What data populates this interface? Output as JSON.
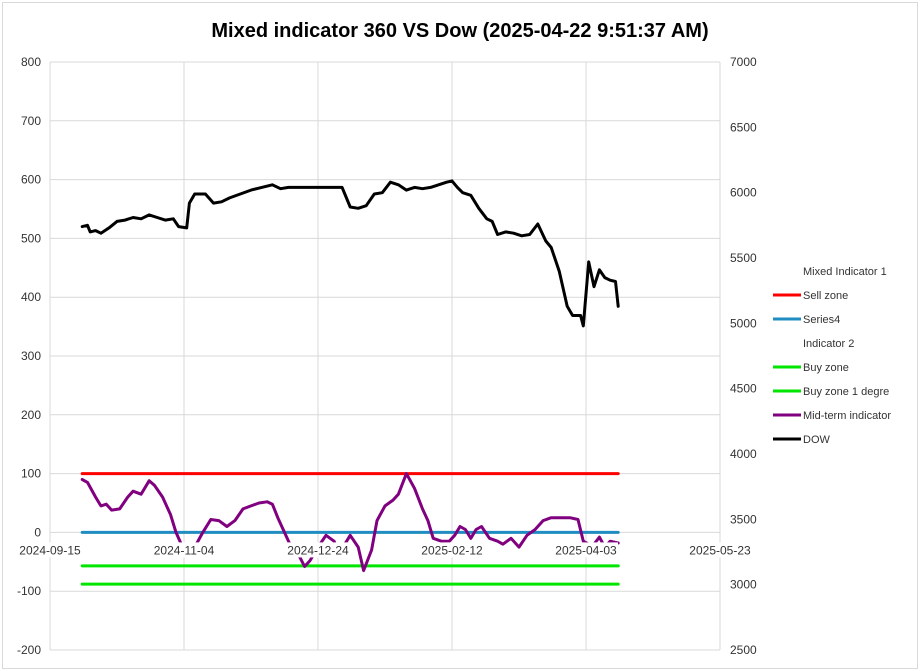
{
  "chart_data": {
    "type": "line",
    "title": "Mixed indicator 360 VS Dow (2025-04-22 9:51:37 AM)",
    "x_tick_labels": [
      "2024-09-15",
      "2024-11-04",
      "2024-12-24",
      "2025-02-12",
      "2025-04-03",
      "2025-05-23"
    ],
    "x_range": [
      "2024-09-15",
      "2025-05-23"
    ],
    "y_left": {
      "range": [
        -200,
        800
      ],
      "ticks": [
        "800",
        "700",
        "600",
        "500",
        "400",
        "300",
        "200",
        "100",
        "0",
        "-100",
        "-200"
      ]
    },
    "y_right": {
      "range": [
        2500,
        7000
      ],
      "ticks": [
        "7000",
        "6500",
        "6000",
        "5500",
        "5000",
        "4500",
        "4000",
        "3500",
        "3000",
        "2500"
      ]
    },
    "gridlines": true,
    "legend": {
      "position": "right",
      "entries": [
        {
          "label": "Mixed Indicator 1",
          "color": ""
        },
        {
          "label": "Sell zone",
          "color": "#ff0000"
        },
        {
          "label": "Series4",
          "color": "#1f8dc1"
        },
        {
          "label": "Indicator  2",
          "color": ""
        },
        {
          "label": "Buy zone",
          "color": "#00e600"
        },
        {
          "label": "Buy zone 1 degre",
          "color": "#00e600"
        },
        {
          "label": "Mid-term indicator",
          "color": "#800080"
        },
        {
          "label": "DOW",
          "color": "#000000"
        }
      ]
    },
    "series": [
      {
        "name": "Sell zone",
        "axis": "left",
        "color": "#ff0000",
        "points": [
          [
            "2024-09-27",
            100
          ],
          [
            "2025-04-15",
            100
          ]
        ]
      },
      {
        "name": "Series4",
        "axis": "left",
        "color": "#1f8dc1",
        "points": [
          [
            "2024-09-27",
            0
          ],
          [
            "2025-04-15",
            0
          ]
        ]
      },
      {
        "name": "Buy zone",
        "axis": "left",
        "color": "#00e600",
        "points": [
          [
            "2024-09-27",
            -57
          ],
          [
            "2025-04-15",
            -57
          ]
        ]
      },
      {
        "name": "Buy zone 1 degre",
        "axis": "left",
        "color": "#00e600",
        "points": [
          [
            "2024-09-27",
            -88
          ],
          [
            "2025-04-15",
            -88
          ]
        ]
      },
      {
        "name": "Mid-term indicator",
        "axis": "left",
        "color": "#800080",
        "points": [
          [
            "2024-09-27",
            90
          ],
          [
            "2024-09-29",
            85
          ],
          [
            "2024-10-02",
            60
          ],
          [
            "2024-10-04",
            45
          ],
          [
            "2024-10-06",
            48
          ],
          [
            "2024-10-08",
            38
          ],
          [
            "2024-10-11",
            40
          ],
          [
            "2024-10-14",
            60
          ],
          [
            "2024-10-16",
            70
          ],
          [
            "2024-10-19",
            65
          ],
          [
            "2024-10-22",
            88
          ],
          [
            "2024-10-24",
            80
          ],
          [
            "2024-10-27",
            60
          ],
          [
            "2024-10-30",
            30
          ],
          [
            "2024-11-01",
            0
          ],
          [
            "2024-11-03",
            -20
          ],
          [
            "2024-11-05",
            -35
          ],
          [
            "2024-11-08",
            -25
          ],
          [
            "2024-11-11",
            0
          ],
          [
            "2024-11-14",
            22
          ],
          [
            "2024-11-17",
            20
          ],
          [
            "2024-11-20",
            10
          ],
          [
            "2024-11-23",
            20
          ],
          [
            "2024-11-26",
            40
          ],
          [
            "2024-11-29",
            45
          ],
          [
            "2024-12-02",
            50
          ],
          [
            "2024-12-05",
            52
          ],
          [
            "2024-12-07",
            48
          ],
          [
            "2024-12-09",
            25
          ],
          [
            "2024-12-12",
            -5
          ],
          [
            "2024-12-14",
            -25
          ],
          [
            "2024-12-17",
            -40
          ],
          [
            "2024-12-19",
            -58
          ],
          [
            "2024-12-21",
            -48
          ],
          [
            "2024-12-24",
            -25
          ],
          [
            "2024-12-27",
            -5
          ],
          [
            "2024-12-30",
            -15
          ],
          [
            "2025-01-01",
            -35
          ],
          [
            "2025-01-03",
            -20
          ],
          [
            "2025-01-05",
            -5
          ],
          [
            "2025-01-08",
            -25
          ],
          [
            "2025-01-10",
            -65
          ],
          [
            "2025-01-13",
            -30
          ],
          [
            "2025-01-15",
            20
          ],
          [
            "2025-01-18",
            45
          ],
          [
            "2025-01-21",
            55
          ],
          [
            "2025-01-23",
            65
          ],
          [
            "2025-01-26",
            100
          ],
          [
            "2025-01-29",
            75
          ],
          [
            "2025-02-01",
            40
          ],
          [
            "2025-02-03",
            20
          ],
          [
            "2025-02-05",
            -10
          ],
          [
            "2025-02-08",
            -15
          ],
          [
            "2025-02-11",
            -15
          ],
          [
            "2025-02-13",
            -5
          ],
          [
            "2025-02-15",
            10
          ],
          [
            "2025-02-17",
            5
          ],
          [
            "2025-02-19",
            -10
          ],
          [
            "2025-02-21",
            5
          ],
          [
            "2025-02-23",
            10
          ],
          [
            "2025-02-26",
            -10
          ],
          [
            "2025-03-01",
            -15
          ],
          [
            "2025-03-03",
            -20
          ],
          [
            "2025-03-06",
            -10
          ],
          [
            "2025-03-09",
            -25
          ],
          [
            "2025-03-12",
            -5
          ],
          [
            "2025-03-15",
            5
          ],
          [
            "2025-03-18",
            20
          ],
          [
            "2025-03-21",
            25
          ],
          [
            "2025-03-25",
            25
          ],
          [
            "2025-03-28",
            25
          ],
          [
            "2025-03-31",
            22
          ],
          [
            "2025-04-02",
            -15
          ],
          [
            "2025-04-04",
            -20
          ],
          [
            "2025-04-06",
            -20
          ],
          [
            "2025-04-08",
            -8
          ],
          [
            "2025-04-10",
            -25
          ],
          [
            "2025-04-12",
            -15
          ],
          [
            "2025-04-15",
            -18
          ]
        ]
      },
      {
        "name": "DOW",
        "axis": "right",
        "color": "#000000",
        "points": [
          [
            "2024-09-27",
            5740
          ],
          [
            "2024-09-29",
            5750
          ],
          [
            "2024-09-30",
            5700
          ],
          [
            "2024-10-02",
            5710
          ],
          [
            "2024-10-04",
            5690
          ],
          [
            "2024-10-07",
            5730
          ],
          [
            "2024-10-10",
            5780
          ],
          [
            "2024-10-13",
            5790
          ],
          [
            "2024-10-16",
            5810
          ],
          [
            "2024-10-19",
            5800
          ],
          [
            "2024-10-22",
            5830
          ],
          [
            "2024-10-25",
            5810
          ],
          [
            "2024-10-28",
            5790
          ],
          [
            "2024-10-31",
            5800
          ],
          [
            "2024-11-02",
            5740
          ],
          [
            "2024-11-05",
            5730
          ],
          [
            "2024-11-06",
            5920
          ],
          [
            "2024-11-08",
            5990
          ],
          [
            "2024-11-12",
            5990
          ],
          [
            "2024-11-15",
            5920
          ],
          [
            "2024-11-18",
            5930
          ],
          [
            "2024-11-21",
            5960
          ],
          [
            "2024-11-25",
            5990
          ],
          [
            "2024-11-29",
            6020
          ],
          [
            "2024-12-03",
            6040
          ],
          [
            "2024-12-07",
            6060
          ],
          [
            "2024-12-10",
            6030
          ],
          [
            "2024-12-13",
            6040
          ],
          [
            "2024-12-17",
            6040
          ],
          [
            "2024-12-21",
            6040
          ],
          [
            "2024-12-25",
            6040
          ],
          [
            "2024-12-29",
            6040
          ],
          [
            "2025-01-02",
            6040
          ],
          [
            "2025-01-05",
            5890
          ],
          [
            "2025-01-08",
            5880
          ],
          [
            "2025-01-11",
            5900
          ],
          [
            "2025-01-14",
            5990
          ],
          [
            "2025-01-17",
            6000
          ],
          [
            "2025-01-20",
            6080
          ],
          [
            "2025-01-23",
            6060
          ],
          [
            "2025-01-26",
            6020
          ],
          [
            "2025-01-29",
            6040
          ],
          [
            "2025-02-01",
            6030
          ],
          [
            "2025-02-04",
            6040
          ],
          [
            "2025-02-07",
            6060
          ],
          [
            "2025-02-10",
            6080
          ],
          [
            "2025-02-12",
            6090
          ],
          [
            "2025-02-14",
            6040
          ],
          [
            "2025-02-16",
            6000
          ],
          [
            "2025-02-19",
            5980
          ],
          [
            "2025-02-22",
            5880
          ],
          [
            "2025-02-25",
            5800
          ],
          [
            "2025-02-27",
            5780
          ],
          [
            "2025-03-01",
            5680
          ],
          [
            "2025-03-04",
            5700
          ],
          [
            "2025-03-07",
            5690
          ],
          [
            "2025-03-10",
            5670
          ],
          [
            "2025-03-13",
            5680
          ],
          [
            "2025-03-16",
            5760
          ],
          [
            "2025-03-19",
            5630
          ],
          [
            "2025-03-21",
            5580
          ],
          [
            "2025-03-24",
            5400
          ],
          [
            "2025-03-27",
            5130
          ],
          [
            "2025-03-29",
            5060
          ],
          [
            "2025-04-01",
            5060
          ],
          [
            "2025-04-02",
            4980
          ],
          [
            "2025-04-04",
            5470
          ],
          [
            "2025-04-06",
            5280
          ],
          [
            "2025-04-08",
            5410
          ],
          [
            "2025-04-10",
            5350
          ],
          [
            "2025-04-12",
            5330
          ],
          [
            "2025-04-14",
            5320
          ],
          [
            "2025-04-15",
            5130
          ]
        ]
      }
    ]
  }
}
